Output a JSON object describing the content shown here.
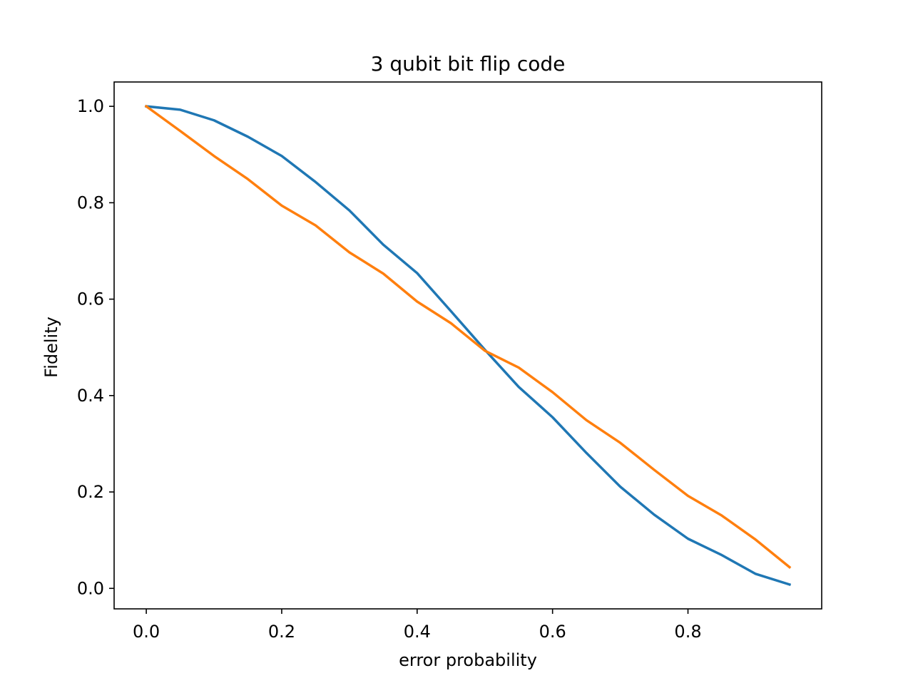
{
  "chart_data": {
    "type": "line",
    "title": "3 qubit bit flip code",
    "xlabel": "error probability",
    "ylabel": "Fidelity",
    "xlim": [
      -0.0475,
      0.9975
    ],
    "ylim": [
      -0.0425,
      1.0505
    ],
    "xticks": [
      0.0,
      0.2,
      0.4,
      0.6,
      0.8
    ],
    "xtick_labels": [
      "0.0",
      "0.2",
      "0.4",
      "0.6",
      "0.8"
    ],
    "yticks": [
      0.0,
      0.2,
      0.4,
      0.6,
      0.8,
      1.0
    ],
    "ytick_labels": [
      "0.0",
      "0.2",
      "0.4",
      "0.6",
      "0.8",
      "1.0"
    ],
    "grid": false,
    "legend": "none",
    "x": [
      0.0,
      0.05,
      0.1,
      0.15,
      0.2,
      0.25,
      0.3,
      0.35,
      0.4,
      0.45,
      0.5,
      0.55,
      0.6,
      0.65,
      0.7,
      0.75,
      0.8,
      0.85,
      0.9,
      0.95
    ],
    "series": [
      {
        "color": "#1f77b4",
        "values": [
          1.0,
          0.993,
          0.971,
          0.937,
          0.897,
          0.843,
          0.784,
          0.713,
          0.654,
          0.575,
          0.495,
          0.418,
          0.355,
          0.281,
          0.211,
          0.153,
          0.103,
          0.069,
          0.03,
          0.008
        ]
      },
      {
        "color": "#ff7f0e",
        "values": [
          1.0,
          0.949,
          0.897,
          0.849,
          0.794,
          0.753,
          0.697,
          0.653,
          0.595,
          0.55,
          0.493,
          0.458,
          0.407,
          0.349,
          0.302,
          0.246,
          0.192,
          0.151,
          0.101,
          0.044
        ]
      }
    ]
  }
}
